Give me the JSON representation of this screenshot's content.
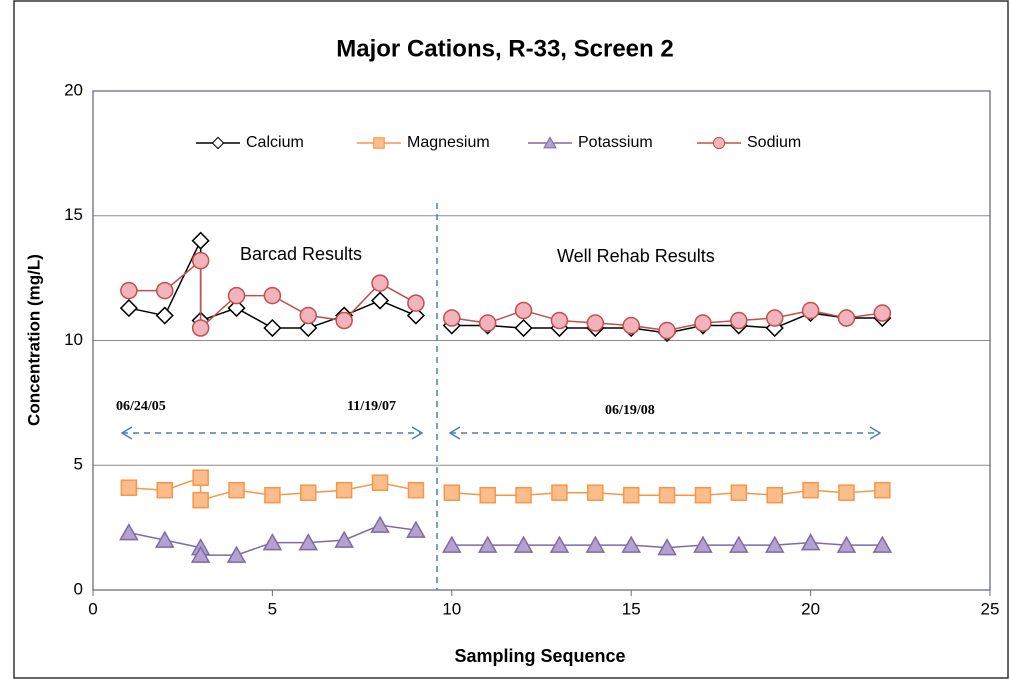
{
  "chart_data": {
    "type": "line",
    "title": "Major Cations, R-33, Screen 2",
    "x_label": "Sampling Sequence",
    "y_label": "Concentration (mg/L)",
    "annotations": [
      "Barcad Results",
      "Well Rehab Results",
      "06/24/05",
      "11/19/07",
      "06/19/08"
    ],
    "xlim": [
      0,
      25
    ],
    "xticks": [
      0,
      5,
      10,
      15,
      20,
      25
    ],
    "ylim": [
      0,
      20
    ],
    "yticks": [
      0,
      5,
      10,
      15,
      20
    ],
    "grid": true,
    "legend": "top",
    "x": [
      1,
      2,
      3,
      3,
      4,
      5,
      6,
      7,
      8,
      9,
      null,
      10,
      11,
      12,
      13,
      14,
      15,
      16,
      17,
      18,
      19,
      20,
      21,
      22
    ],
    "series": [
      {
        "name": "Calcium",
        "color": "#000000",
        "fill": "#ffffff",
        "marker": "diamond",
        "values": [
          11.3,
          11.0,
          14.0,
          10.8,
          11.3,
          10.5,
          10.5,
          11.0,
          11.6,
          11.0,
          null,
          10.6,
          10.6,
          10.5,
          10.5,
          10.5,
          10.5,
          10.3,
          10.6,
          10.6,
          10.5,
          11.1,
          10.9,
          10.9
        ]
      },
      {
        "name": "Magnesium",
        "color": "#f79646",
        "fill": "#fbbd8c",
        "marker": "square",
        "values": [
          4.1,
          4.0,
          4.5,
          3.6,
          4.0,
          3.8,
          3.9,
          4.0,
          4.3,
          4.0,
          null,
          3.9,
          3.8,
          3.8,
          3.9,
          3.9,
          3.8,
          3.8,
          3.8,
          3.9,
          3.8,
          4.0,
          3.9,
          4.0
        ]
      },
      {
        "name": "Potassium",
        "color": "#7f6aa5",
        "fill": "#b3a2d0",
        "marker": "triangle",
        "values": [
          2.3,
          2.0,
          1.7,
          1.4,
          1.4,
          1.9,
          1.9,
          2.0,
          2.6,
          2.4,
          null,
          1.8,
          1.8,
          1.8,
          1.8,
          1.8,
          1.8,
          1.7,
          1.8,
          1.8,
          1.8,
          1.9,
          1.8,
          1.8
        ]
      },
      {
        "name": "Sodium",
        "color": "#c0504d",
        "fill": "#f2b3bd",
        "marker": "circle",
        "values": [
          12.0,
          12.0,
          13.2,
          10.5,
          11.8,
          11.8,
          11.0,
          10.8,
          12.3,
          11.5,
          null,
          10.9,
          10.7,
          11.2,
          10.8,
          10.7,
          10.6,
          10.4,
          10.7,
          10.8,
          10.9,
          11.2,
          10.9,
          11.1
        ]
      }
    ]
  }
}
